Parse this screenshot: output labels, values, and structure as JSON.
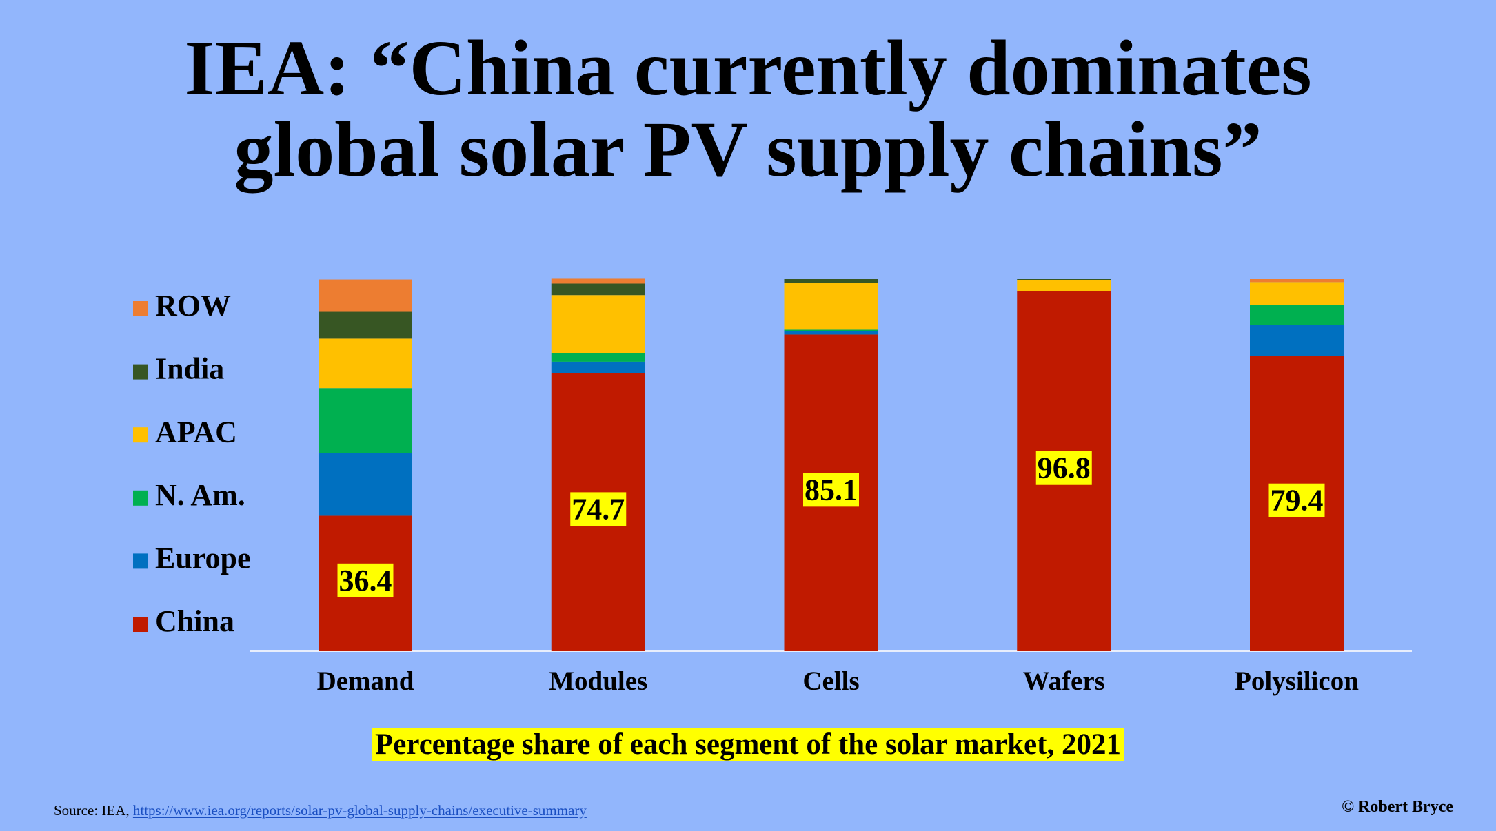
{
  "chart_data": {
    "type": "stacked_bar",
    "title": "IEA: “China currently dominates global solar PV supply chains”",
    "subtitle": "Percentage share of each segment of the solar market, 2021",
    "source": "Source: IEA,",
    "source_url": "https://www.iea.org/reports/solar-pv-global-supply-chains/executive-summary",
    "credit": "© Robert Bryce",
    "categories": [
      "Demand",
      "Modules",
      "Cells",
      "Wafers",
      "Polysilicon"
    ],
    "ylim": [
      0,
      100
    ],
    "series": [
      {
        "name": "China",
        "color": "#c01a00",
        "values": [
          36.4,
          74.7,
          85.1,
          96.8,
          79.4
        ],
        "data_labels": true
      },
      {
        "name": "Europe",
        "color": "#0070c0",
        "values": [
          16.9,
          3.1,
          1.0,
          0,
          8.2
        ]
      },
      {
        "name": "N. Am.",
        "color": "#00b050",
        "values": [
          17.4,
          2.3,
          0.3,
          0,
          5.4
        ]
      },
      {
        "name": "APAC",
        "color": "#ffc000",
        "values": [
          13.3,
          15.6,
          12.6,
          3.0,
          6.2
        ]
      },
      {
        "name": "India",
        "color": "#375623",
        "values": [
          7.2,
          3.1,
          1.0,
          0.2,
          0
        ]
      },
      {
        "name": "ROW",
        "color": "#ed7d31",
        "values": [
          8.7,
          1.3,
          0,
          0,
          0.8
        ]
      }
    ]
  }
}
